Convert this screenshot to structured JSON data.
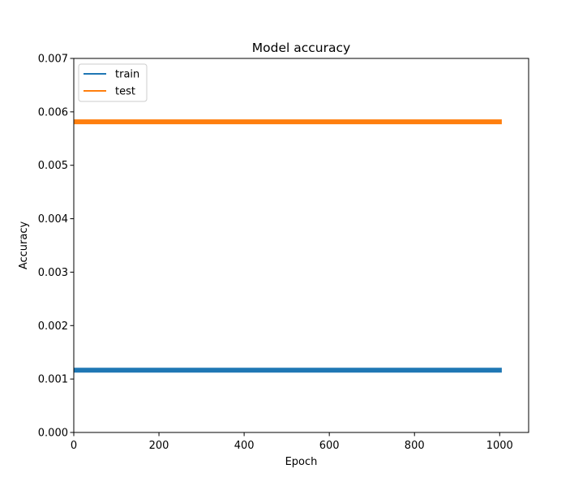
{
  "chart_data": {
    "type": "line",
    "title": "Model accuracy",
    "xlabel": "Epoch",
    "ylabel": "Accuracy",
    "xlim": [
      0,
      1068
    ],
    "ylim": [
      0,
      0.007
    ],
    "xticks": [
      0,
      200,
      400,
      600,
      800,
      1000
    ],
    "xtick_labels": [
      "0",
      "200",
      "400",
      "600",
      "800",
      "1000"
    ],
    "yticks": [
      0,
      0.001,
      0.002,
      0.003,
      0.004,
      0.005,
      0.006,
      0.007
    ],
    "ytick_labels": [
      "0.000",
      "0.001",
      "0.002",
      "0.003",
      "0.004",
      "0.005",
      "0.006",
      "0.007"
    ],
    "grid": false,
    "legend_position": "top-left",
    "series": [
      {
        "name": "train",
        "color": "#1f77b4",
        "x": [
          0,
          1005
        ],
        "y": [
          0.001166,
          0.001166
        ]
      },
      {
        "name": "test",
        "color": "#ff7f0e",
        "x": [
          0,
          1005
        ],
        "y": [
          0.005814,
          0.005814
        ]
      }
    ]
  }
}
